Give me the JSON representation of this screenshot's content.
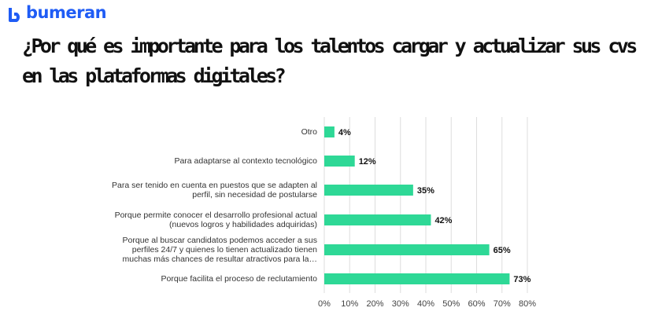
{
  "brand": "bumeran",
  "chart_data": {
    "type": "barh",
    "title": "¿Por qué es importante para los talentos cargar y actualizar sus cvs en las plataformas digitales?",
    "categories": [
      "Otro",
      "Para adaptarse al contexto tecnológico",
      "Para ser tenido en cuenta en puestos que se adapten al perfil, sin necesidad de postularse",
      "Porque permite conocer el desarrollo profesional actual (nuevos logros y habilidades adquiridas)",
      "Porque al buscar candidatos podemos acceder a sus perfiles 24/7 y quienes lo tienen actualizado tienen muchas más chances de resultar atractivos para la…",
      "Porque facilita el proceso de reclutamiento"
    ],
    "values": [
      4,
      12,
      35,
      42,
      65,
      73
    ],
    "value_labels": [
      "4%",
      "12%",
      "35%",
      "42%",
      "65%",
      "73%"
    ],
    "color": "#2ed896",
    "xlim": [
      0,
      80
    ],
    "xticks": [
      {
        "value": 0,
        "label": "0%"
      },
      {
        "value": 10,
        "label": "10%"
      },
      {
        "value": 20,
        "label": "20%"
      },
      {
        "value": 30,
        "label": "30%"
      },
      {
        "value": 40,
        "label": "40%"
      },
      {
        "value": 50,
        "label": "50%"
      },
      {
        "value": 60,
        "label": "60%"
      },
      {
        "value": 70,
        "label": "70%"
      },
      {
        "value": 80,
        "label": "80%"
      }
    ],
    "grid": true
  }
}
